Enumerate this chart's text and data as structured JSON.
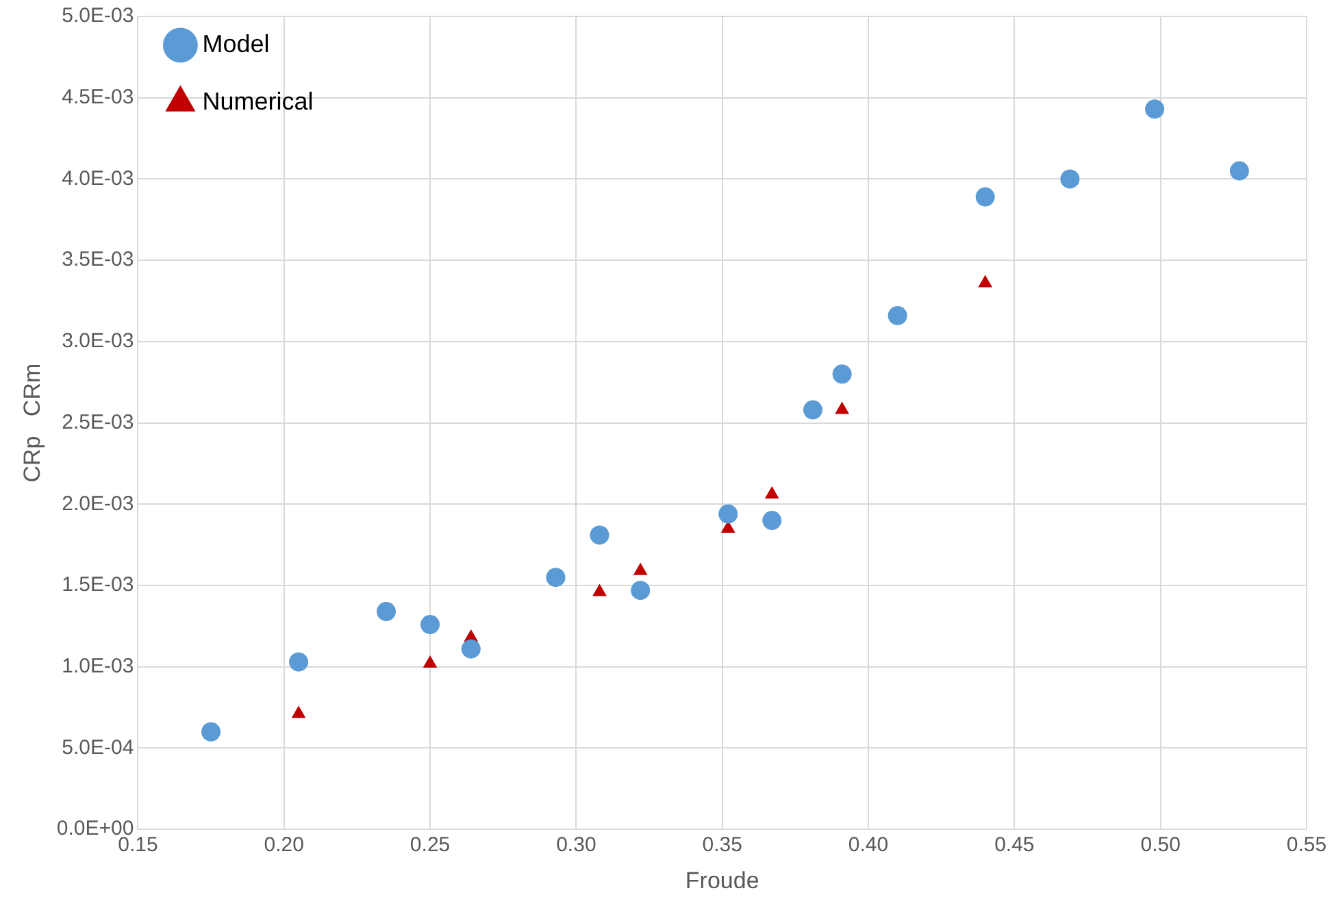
{
  "chart_data": {
    "type": "scatter",
    "xlabel": "Froude",
    "ylabel": "CRp   CRm",
    "xlim": [
      0.15,
      0.55
    ],
    "xticks": [
      {
        "value": 0.15,
        "label": "0.15"
      },
      {
        "value": 0.2,
        "label": "0.20"
      },
      {
        "value": 0.25,
        "label": "0.25"
      },
      {
        "value": 0.3,
        "label": "0.30"
      },
      {
        "value": 0.35,
        "label": "0.35"
      },
      {
        "value": 0.4,
        "label": "0.40"
      },
      {
        "value": 0.45,
        "label": "0.45"
      },
      {
        "value": 0.5,
        "label": "0.50"
      },
      {
        "value": 0.55,
        "label": "0.55"
      }
    ],
    "ylim": [
      0,
      0.005
    ],
    "yticks": [
      {
        "value": 0,
        "label": "0.0E+00"
      },
      {
        "value": 0.0005,
        "label": "5.0E-04"
      },
      {
        "value": 0.001,
        "label": "1.0E-03"
      },
      {
        "value": 0.0015,
        "label": "1.5E-03"
      },
      {
        "value": 0.002,
        "label": "2.0E-03"
      },
      {
        "value": 0.0025,
        "label": "2.5E-03"
      },
      {
        "value": 0.003,
        "label": "3.0E-03"
      },
      {
        "value": 0.0035,
        "label": "3.5E-03"
      },
      {
        "value": 0.004,
        "label": "4.0E-03"
      },
      {
        "value": 0.0045,
        "label": "4.5E-03"
      },
      {
        "value": 0.005,
        "label": "5.0E-03"
      }
    ],
    "grid": true,
    "legend": "top left",
    "series": [
      {
        "name": "Model",
        "color": "#5b9bd5",
        "marker": "circle",
        "x": [
          0.175,
          0.205,
          0.235,
          0.25,
          0.264,
          0.293,
          0.308,
          0.322,
          0.352,
          0.367,
          0.381,
          0.391,
          0.41,
          0.44,
          0.469,
          0.498,
          0.527
        ],
        "values": [
          0.0006,
          0.00103,
          0.00134,
          0.00126,
          0.00111,
          0.00155,
          0.00181,
          0.00147,
          0.00194,
          0.0019,
          0.00258,
          0.0028,
          0.00316,
          0.00389,
          0.004,
          0.00443,
          0.00405
        ]
      },
      {
        "name": "Numerical",
        "color": "#c00000",
        "marker": "triangle",
        "x": [
          0.205,
          0.25,
          0.264,
          0.308,
          0.322,
          0.352,
          0.367,
          0.391,
          0.44
        ],
        "values": [
          0.00071,
          0.00102,
          0.00118,
          0.00146,
          0.00159,
          0.00185,
          0.00206,
          0.00258,
          0.00336
        ]
      }
    ]
  }
}
